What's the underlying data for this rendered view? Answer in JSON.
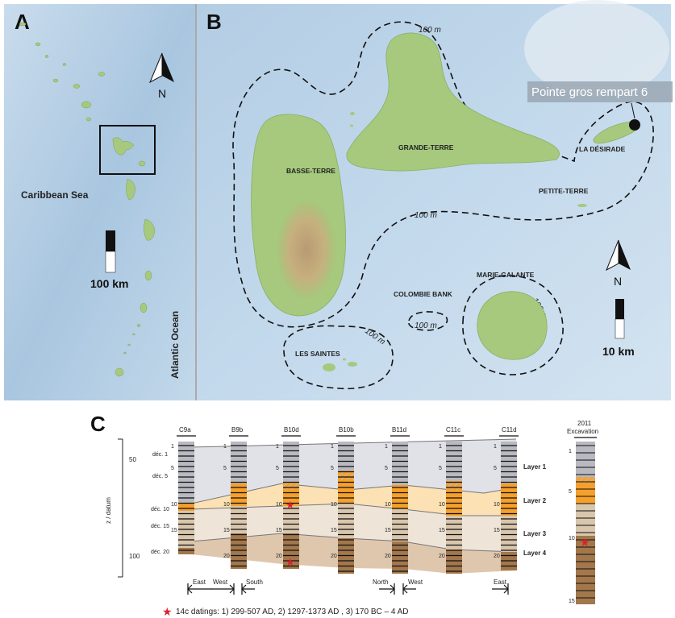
{
  "panels": {
    "a": {
      "letter": "A",
      "caribbean_sea": "Caribbean Sea",
      "atlantic_ocean": "Atlantic Ocean",
      "north": "N",
      "scale": "100 km"
    },
    "b": {
      "letter": "B",
      "site": "Pointe gros rempart 6",
      "basse_terre": "BASSE-TERRE",
      "grande_terre": "GRANDE-TERRE",
      "la_desirade": "LA DÉSIRADE",
      "petite_terre": "PETITE-TERRE",
      "marie_galante": "MARIE-GALANTE",
      "colombie_bank": "COLOMBIE BANK",
      "les_saintes": "LES SAINTES",
      "contour_label": "100 m",
      "contour_label_alt": "100m",
      "north": "N",
      "scale": "10 km"
    },
    "c": {
      "letter": "C",
      "y_axis_label": "z / datum",
      "y_ticks": [
        "50",
        "100"
      ],
      "dec_labels": [
        "déc. 1",
        "déc. 5",
        "déc. 10",
        "déc. 15",
        "déc. 20"
      ],
      "columns": [
        "C9a",
        "B9b",
        "B10d",
        "B10b",
        "B11d",
        "C11c",
        "C11d"
      ],
      "excavation_title_1": "2011",
      "excavation_title_2": "Excavation",
      "layers": [
        "Layer 1",
        "Layer 2",
        "Layer 3",
        "Layer 4"
      ],
      "directions": [
        "East",
        "West",
        "South",
        "North",
        "West",
        "East"
      ],
      "caption": "14c datings: 1) 299-507 AD, 2) 1297-1373 AD , 3) 170 BC – 4 AD",
      "excavation_numbers": [
        "1",
        "5",
        "10",
        "15"
      ],
      "column_numbers": [
        "1",
        "5",
        "10",
        "15",
        "20"
      ]
    }
  },
  "colors": {
    "sea": "#bcd6ea",
    "land": "#a6c97d",
    "layer1": "#b9b9c2",
    "layer2": "#f5a02c",
    "layer3": "#d8c6ad",
    "layer4": "#a3774c",
    "star": "#e0202a"
  }
}
